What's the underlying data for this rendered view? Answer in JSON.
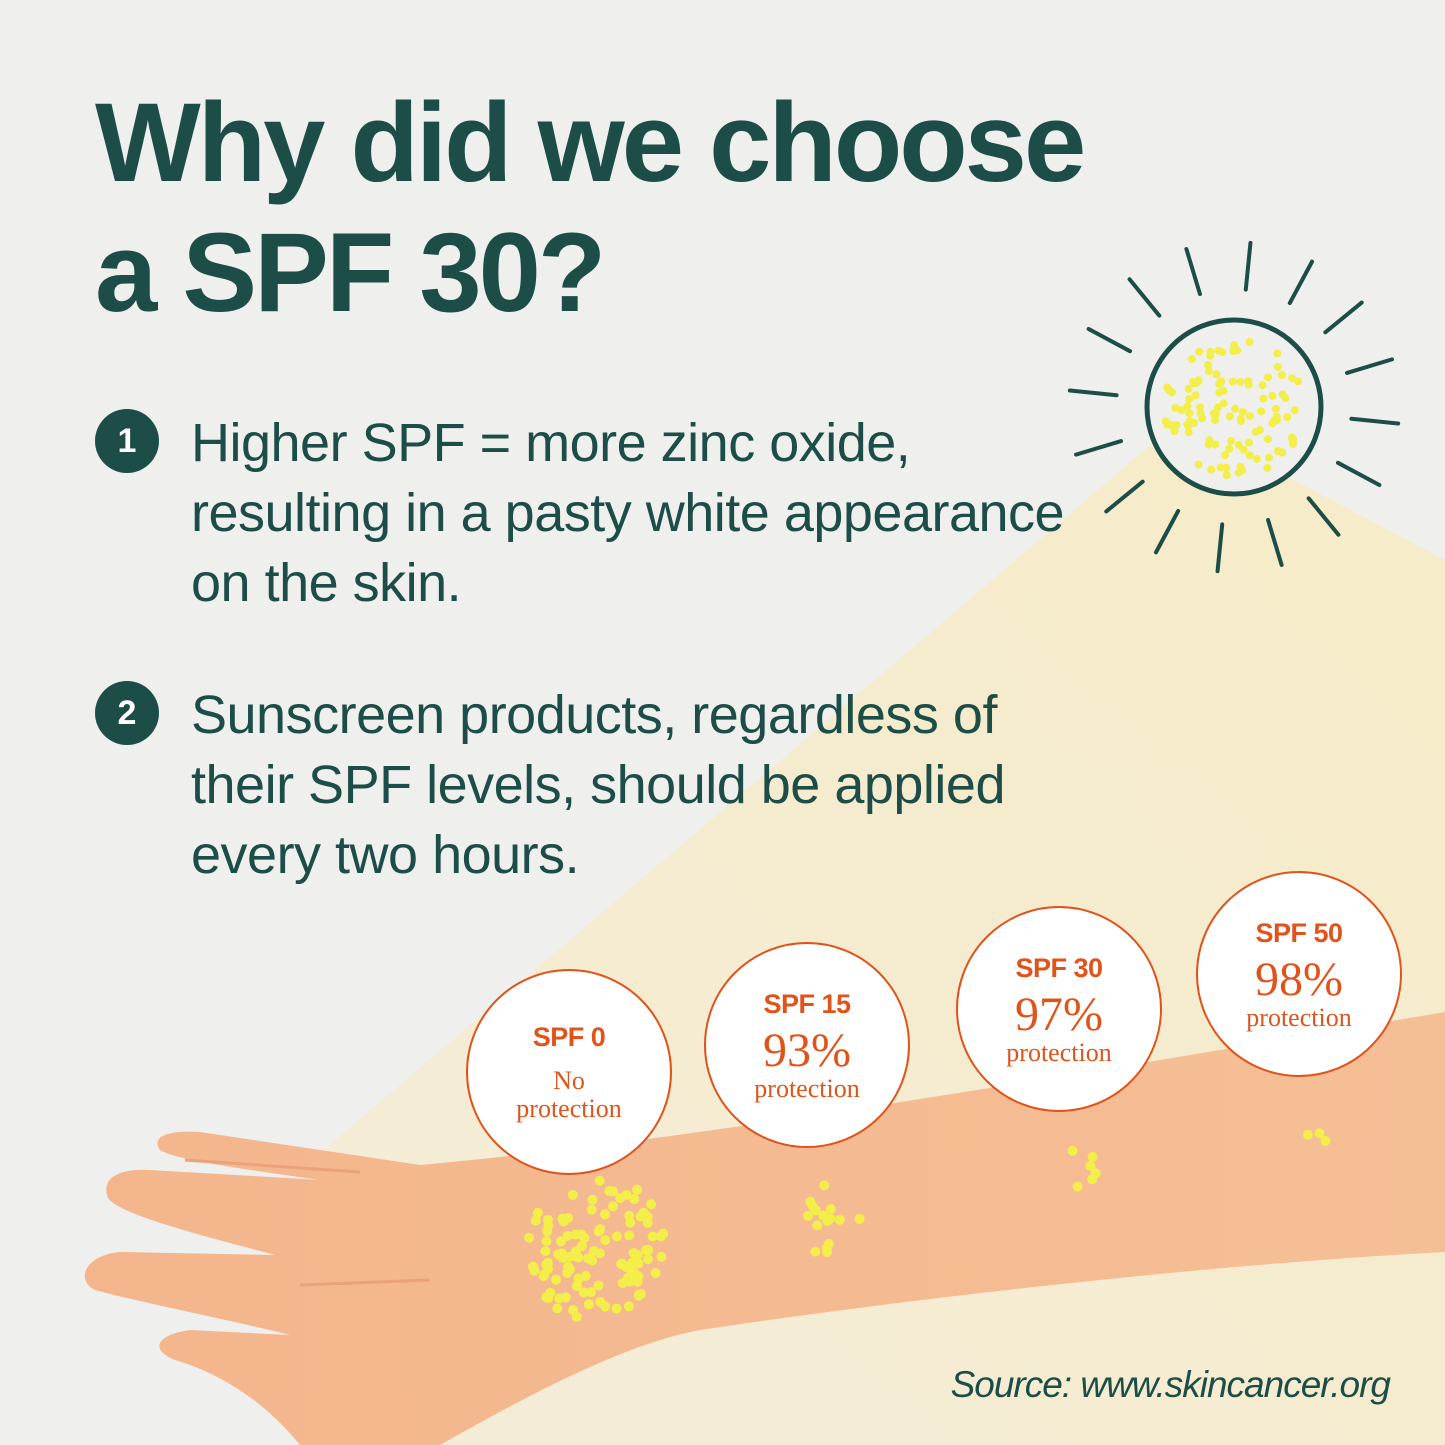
{
  "title": {
    "line1": "Why did we choose",
    "line2": "a SPF 30?"
  },
  "points": [
    {
      "number": "1",
      "text": "Higher SPF = more zinc oxide, resulting in a pasty white appearance on the skin."
    },
    {
      "number": "2",
      "text": "Sunscreen products, regardless of their SPF levels, should be applied every two hours."
    }
  ],
  "badges": [
    {
      "spf": "SPF 0",
      "value": "",
      "label": "No protection"
    },
    {
      "spf": "SPF 15",
      "value": "93%",
      "label": "protection"
    },
    {
      "spf": "SPF 30",
      "value": "97%",
      "label": "protection"
    },
    {
      "spf": "SPF 50",
      "value": "98%",
      "label": "protection"
    }
  ],
  "source": "Source: www.skincancer.org",
  "icons": [
    "sun-icon",
    "arm-illustration",
    "uv-dots"
  ],
  "colors": {
    "background": "#efefee",
    "green": "#1d4d47",
    "orange": "#e0541c",
    "skin": "#f4b98e",
    "sunlight": "#f6edd3",
    "dots": "#f3ee4a"
  }
}
